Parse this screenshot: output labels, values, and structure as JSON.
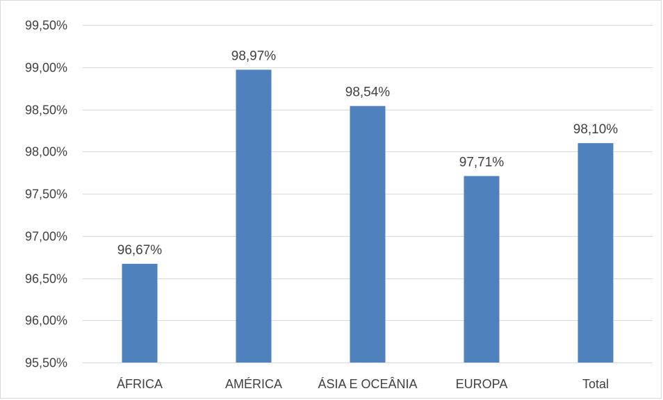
{
  "chart_data": {
    "type": "bar",
    "title": "",
    "xlabel": "",
    "ylabel": "",
    "categories": [
      "ÁFRICA",
      "AMÉRICA",
      "ÁSIA E OCEÂNIA",
      "EUROPA",
      "Total"
    ],
    "values": [
      96.67,
      98.97,
      98.54,
      97.71,
      98.1
    ],
    "value_labels": [
      "96,67%",
      "98,97%",
      "98,54%",
      "97,71%",
      "98,10%"
    ],
    "ylim": [
      95.5,
      99.5
    ],
    "y_ticks": [
      95.5,
      96.0,
      96.5,
      97.0,
      97.5,
      98.0,
      98.5,
      99.0,
      99.5
    ],
    "y_tick_labels": [
      "95,50%",
      "96,00%",
      "96,50%",
      "97,00%",
      "97,50%",
      "98,00%",
      "98,50%",
      "99,00%",
      "99,50%"
    ],
    "grid": true,
    "legend": "none",
    "bar_color": "#4f81bd"
  }
}
